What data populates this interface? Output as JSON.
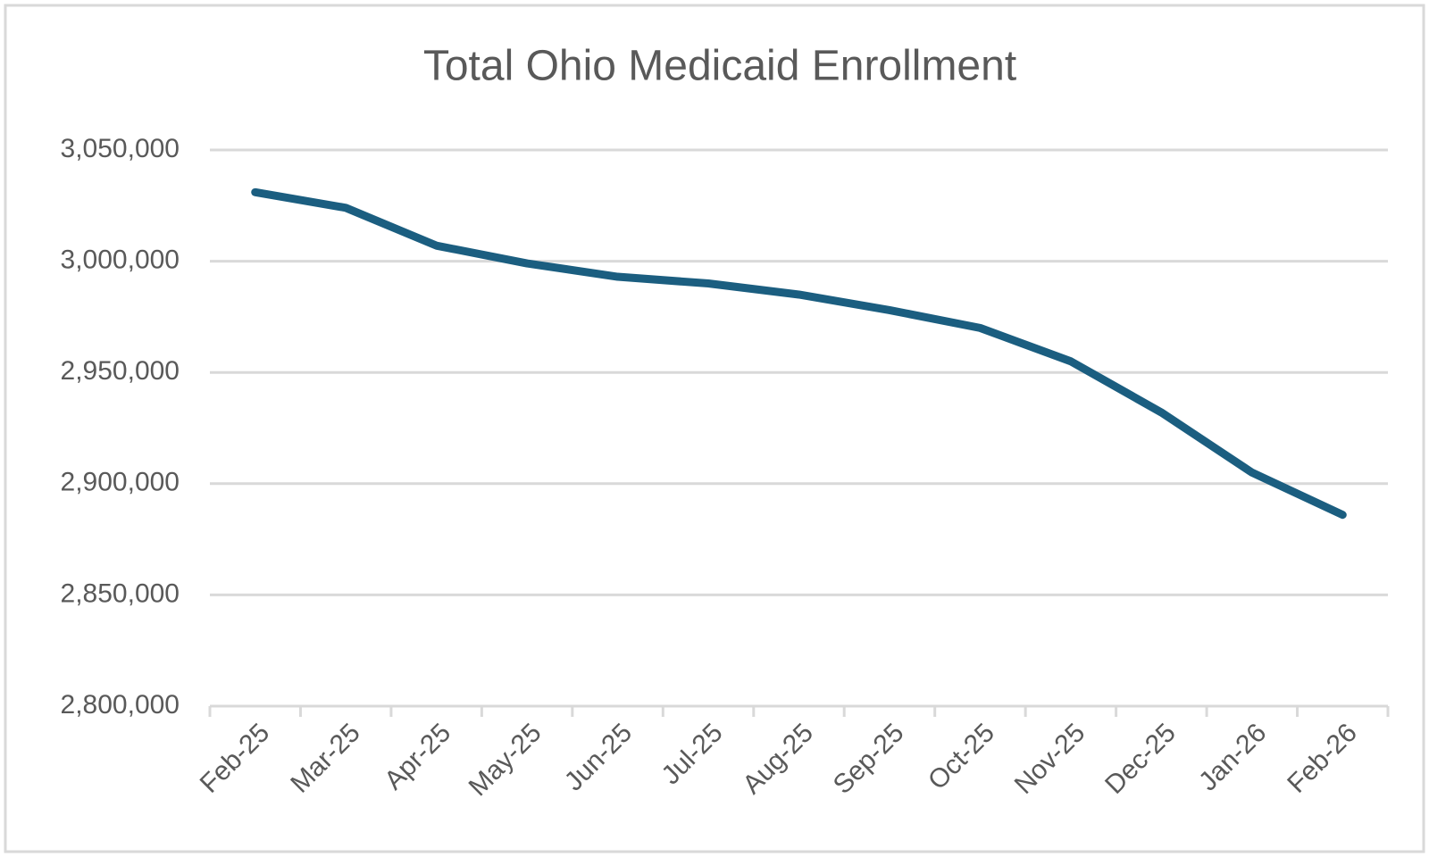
{
  "chart_data": {
    "type": "line",
    "title": "Total Ohio Medicaid Enrollment",
    "categories": [
      "Feb-25",
      "Mar-25",
      "Apr-25",
      "May-25",
      "Jun-25",
      "Jul-25",
      "Aug-25",
      "Sep-25",
      "Oct-25",
      "Nov-25",
      "Dec-25",
      "Jan-26",
      "Feb-26"
    ],
    "series": [
      {
        "name": "Total Ohio Medicaid Enrollment",
        "color": "#1b5e80",
        "values": [
          3031000,
          3024000,
          3007000,
          2999000,
          2993000,
          2990000,
          2985000,
          2978000,
          2970000,
          2955000,
          2932000,
          2905000,
          2886000
        ]
      }
    ],
    "ylim": [
      2800000,
      3050000
    ],
    "yticks": [
      {
        "value": 2800000,
        "label": "2,800,000"
      },
      {
        "value": 2850000,
        "label": "2,850,000"
      },
      {
        "value": 2900000,
        "label": "2,900,000"
      },
      {
        "value": 2950000,
        "label": "2,950,000"
      },
      {
        "value": 3000000,
        "label": "3,000,000"
      },
      {
        "value": 3050000,
        "label": "3,050,000"
      }
    ],
    "grid": true
  }
}
